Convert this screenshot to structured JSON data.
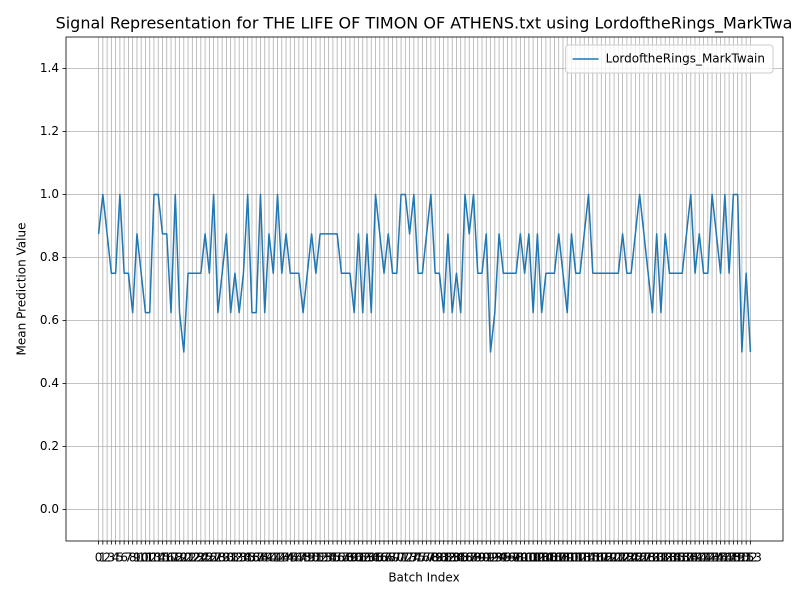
{
  "chart_data": {
    "type": "line",
    "title": "Signal Representation for THE LIFE OF TIMON OF ATHENS.txt using LordoftheRings_MarkTwa",
    "x_label": "Batch Index",
    "y_label": "Mean Prediction Value",
    "x": [
      0,
      1,
      2,
      3,
      4,
      5,
      6,
      7,
      8,
      9,
      10,
      11,
      12,
      13,
      14,
      15,
      16,
      17,
      18,
      19,
      20,
      21,
      22,
      23,
      24,
      25,
      26,
      27,
      28,
      29,
      30,
      31,
      32,
      33,
      34,
      35,
      36,
      37,
      38,
      39,
      40,
      41,
      42,
      43,
      44,
      45,
      46,
      47,
      48,
      49,
      50,
      51,
      52,
      53,
      54,
      55,
      56,
      57,
      58,
      59,
      60,
      61,
      62,
      63,
      64,
      65,
      66,
      67,
      68,
      69,
      70,
      71,
      72,
      73,
      74,
      75,
      76,
      77,
      78,
      79,
      80,
      81,
      82,
      83,
      84,
      85,
      86,
      87,
      88,
      89,
      90,
      91,
      92,
      93,
      94,
      95,
      96,
      97,
      98,
      99,
      100,
      101,
      102,
      103,
      104,
      105,
      106,
      107,
      108,
      109,
      110,
      111,
      112,
      113,
      114,
      115,
      116,
      117,
      118,
      119,
      120,
      121,
      122,
      123,
      124,
      125,
      126,
      127,
      128,
      129,
      130,
      131,
      132,
      133,
      134,
      135,
      136,
      137,
      138,
      139,
      140,
      141,
      142,
      143,
      144,
      145,
      146,
      147,
      148,
      149,
      150,
      151,
      152,
      153
    ],
    "series": [
      {
        "name": "LordoftheRings_MarkTwain",
        "color": "#1f77b4",
        "values": [
          0.875,
          1.0,
          0.875,
          0.75,
          0.75,
          1.0,
          0.75,
          0.75,
          0.625,
          0.875,
          0.75,
          0.625,
          0.625,
          1.0,
          1.0,
          0.875,
          0.875,
          0.625,
          1.0,
          0.625,
          0.5,
          0.75,
          0.75,
          0.75,
          0.75,
          0.875,
          0.75,
          1.0,
          0.625,
          0.75,
          0.875,
          0.625,
          0.75,
          0.625,
          0.75,
          1.0,
          0.625,
          0.625,
          1.0,
          0.625,
          0.875,
          0.75,
          1.0,
          0.75,
          0.875,
          0.75,
          0.75,
          0.75,
          0.625,
          0.75,
          0.875,
          0.75,
          0.875,
          0.875,
          0.875,
          0.875,
          0.875,
          0.75,
          0.75,
          0.75,
          0.625,
          0.875,
          0.625,
          0.875,
          0.625,
          1.0,
          0.875,
          0.75,
          0.875,
          0.75,
          0.75,
          1.0,
          1.0,
          0.875,
          1.0,
          0.75,
          0.75,
          0.875,
          1.0,
          0.75,
          0.75,
          0.625,
          0.875,
          0.625,
          0.75,
          0.625,
          1.0,
          0.875,
          1.0,
          0.75,
          0.75,
          0.875,
          0.5,
          0.625,
          0.875,
          0.75,
          0.75,
          0.75,
          0.75,
          0.875,
          0.75,
          0.875,
          0.625,
          0.875,
          0.625,
          0.75,
          0.75,
          0.75,
          0.875,
          0.75,
          0.625,
          0.875,
          0.75,
          0.75,
          0.875,
          1.0,
          0.75,
          0.75,
          0.75,
          0.75,
          0.75,
          0.75,
          0.75,
          0.875,
          0.75,
          0.75,
          0.875,
          1.0,
          0.875,
          0.75,
          0.625,
          0.875,
          0.625,
          0.875,
          0.75,
          0.75,
          0.75,
          0.75,
          0.875,
          1.0,
          0.75,
          0.875,
          0.75,
          0.75,
          1.0,
          0.875,
          0.75,
          1.0,
          0.75,
          1.0,
          1.0,
          0.5,
          0.75,
          0.5
        ]
      }
    ],
    "xlim": [
      -7.65,
      160.65
    ],
    "xticks": [
      0,
      1,
      2,
      3,
      4,
      5,
      6,
      7,
      8,
      9,
      10,
      11,
      12,
      13,
      14,
      15,
      16,
      17,
      18,
      19,
      20,
      21,
      22,
      23,
      24,
      25,
      26,
      27,
      28,
      29,
      30,
      31,
      32,
      33,
      34,
      35,
      36,
      37,
      38,
      39,
      40,
      41,
      42,
      43,
      44,
      45,
      46,
      47,
      48,
      49,
      50,
      51,
      52,
      53,
      54,
      55,
      56,
      57,
      58,
      59,
      60,
      61,
      62,
      63,
      64,
      65,
      66,
      67,
      68,
      69,
      70,
      71,
      72,
      73,
      74,
      75,
      76,
      77,
      78,
      79,
      80,
      81,
      82,
      83,
      84,
      85,
      86,
      87,
      88,
      89,
      90,
      91,
      92,
      93,
      94,
      95,
      96,
      97,
      98,
      99,
      100,
      101,
      102,
      103,
      104,
      105,
      106,
      107,
      108,
      109,
      110,
      111,
      112,
      113,
      114,
      115,
      116,
      117,
      118,
      119,
      120,
      121,
      122,
      123,
      124,
      125,
      126,
      127,
      128,
      129,
      130,
      131,
      132,
      133,
      134,
      135,
      136,
      137,
      138,
      139,
      140,
      141,
      142,
      143,
      144,
      145,
      146,
      147,
      148,
      149,
      150,
      151,
      152,
      153
    ],
    "ylim": [
      -0.1,
      1.5
    ],
    "yticks": [
      {
        "value": 0,
        "label": "0.0"
      },
      0.2,
      0.4,
      0.6,
      0.8,
      {
        "value": 1,
        "label": "1.0"
      },
      1.2,
      1.4
    ],
    "grid": true,
    "legend": "upper right"
  }
}
